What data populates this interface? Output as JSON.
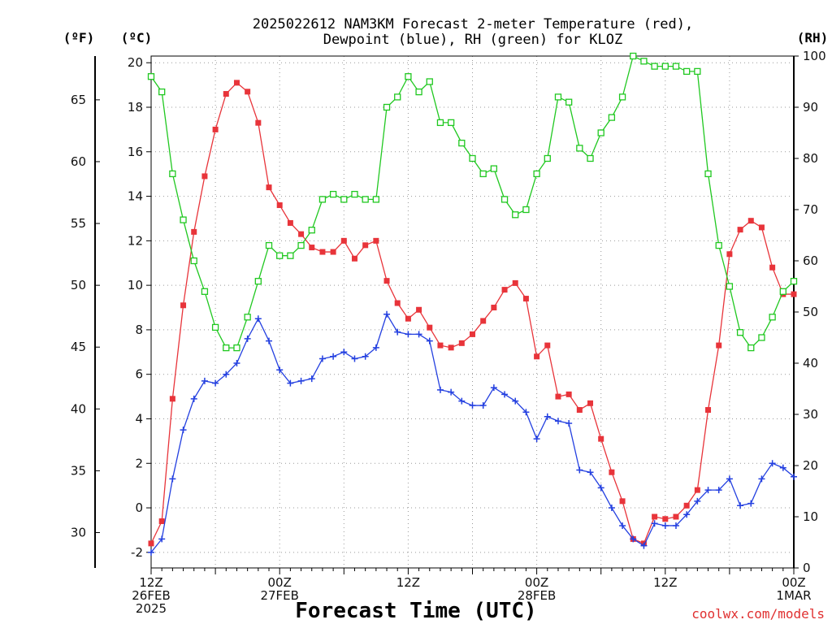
{
  "title_line1": "2025022612 NAM3KM Forecast 2-meter Temperature (red),",
  "title_line2": "Dewpoint (blue), RH (green) for KLOZ",
  "axis_labels": {
    "f": "(ºF)",
    "c": "(ºC)",
    "rh": "(RH)",
    "x": "Forecast Time (UTC)"
  },
  "credit": "coolwx.com/models",
  "colors": {
    "temperature": "#e8343a",
    "dewpoint": "#2440e0",
    "rh": "#20c820",
    "grid": "#999999",
    "axis": "#000000"
  },
  "chart_data": {
    "type": "line",
    "title": "2025022612 NAM3KM Forecast 2-meter Temperature (red), Dewpoint (blue), RH (green) for KLOZ",
    "xlabel": "Forecast Time (UTC)",
    "x_hours": [
      0,
      1,
      2,
      3,
      4,
      5,
      6,
      7,
      8,
      9,
      10,
      11,
      12,
      13,
      14,
      15,
      16,
      17,
      18,
      19,
      20,
      21,
      22,
      23,
      24,
      25,
      26,
      27,
      28,
      29,
      30,
      31,
      32,
      33,
      34,
      35,
      36,
      37,
      38,
      39,
      40,
      41,
      42,
      43,
      44,
      45,
      46,
      47,
      48,
      49,
      50,
      51,
      52,
      53,
      54,
      55,
      56,
      57,
      58,
      59,
      60
    ],
    "xlim": [
      0,
      60
    ],
    "x_ticks": [
      {
        "hour": 0,
        "lines": [
          "12Z",
          "26FEB",
          "2025"
        ]
      },
      {
        "hour": 12,
        "lines": [
          "00Z",
          "27FEB"
        ]
      },
      {
        "hour": 24,
        "lines": [
          "12Z"
        ]
      },
      {
        "hour": 36,
        "lines": [
          "00Z",
          "28FEB"
        ]
      },
      {
        "hour": 48,
        "lines": [
          "12Z"
        ]
      },
      {
        "hour": 60,
        "lines": [
          "00Z",
          "1MAR"
        ]
      }
    ],
    "y_left_celsius": {
      "label": "(ºC)",
      "ylim": [
        -2.7,
        20.3
      ],
      "ticks": [
        -2,
        0,
        2,
        4,
        6,
        8,
        10,
        12,
        14,
        16,
        18,
        20
      ]
    },
    "y_left_fahrenheit": {
      "label": "(ºF)",
      "ticks": [
        30,
        35,
        40,
        45,
        50,
        55,
        60,
        65
      ]
    },
    "y_right_rh": {
      "label": "(RH)",
      "ylim": [
        0,
        100
      ],
      "ticks": [
        0,
        10,
        20,
        30,
        40,
        50,
        60,
        70,
        80,
        90,
        100
      ]
    },
    "grid": true,
    "series": [
      {
        "name": "Temperature",
        "axis": "celsius",
        "color": "#e8343a",
        "marker": "filled-square",
        "values": [
          -1.6,
          -0.6,
          4.9,
          9.1,
          12.4,
          14.9,
          17.0,
          18.6,
          19.1,
          18.7,
          17.3,
          14.4,
          13.6,
          12.8,
          12.3,
          11.7,
          11.5,
          11.5,
          12.0,
          11.2,
          11.8,
          12.0,
          10.2,
          9.2,
          8.5,
          8.9,
          8.1,
          7.3,
          7.2,
          7.4,
          7.8,
          8.4,
          9.0,
          9.8,
          10.1,
          9.4,
          6.8,
          7.3,
          5.0,
          5.1,
          4.4,
          4.7,
          3.1,
          1.6,
          0.3,
          -1.4,
          -1.6,
          -0.4,
          -0.5,
          -0.4,
          0.1,
          0.8,
          4.4,
          7.3,
          11.4,
          12.5,
          12.9,
          12.6,
          10.8,
          9.6,
          9.6
        ]
      },
      {
        "name": "Dewpoint",
        "axis": "celsius",
        "color": "#2440e0",
        "marker": "plus",
        "values": [
          -2.0,
          -1.4,
          1.3,
          3.5,
          4.9,
          5.7,
          5.6,
          6.0,
          6.5,
          7.6,
          8.5,
          7.5,
          6.2,
          5.6,
          5.7,
          5.8,
          6.7,
          6.8,
          7.0,
          6.7,
          6.8,
          7.2,
          8.7,
          7.9,
          7.8,
          7.8,
          7.5,
          5.3,
          5.2,
          4.8,
          4.6,
          4.6,
          5.4,
          5.1,
          4.8,
          4.3,
          3.1,
          4.1,
          3.9,
          3.8,
          1.7,
          1.6,
          0.9,
          0.0,
          -0.8,
          -1.4,
          -1.7,
          -0.7,
          -0.8,
          -0.8,
          -0.3,
          0.3,
          0.8,
          0.8,
          1.3,
          0.1,
          0.2,
          1.3,
          2.0,
          1.8,
          1.4
        ]
      },
      {
        "name": "RH",
        "axis": "rh",
        "color": "#20c820",
        "marker": "open-square",
        "values": [
          96,
          93,
          77,
          68,
          60,
          54,
          47,
          43,
          43,
          49,
          56,
          63,
          61,
          61,
          63,
          66,
          72,
          73,
          72,
          73,
          72,
          72,
          90,
          92,
          96,
          93,
          95,
          87,
          87,
          83,
          80,
          77,
          78,
          72,
          69,
          70,
          77,
          80,
          92,
          91,
          82,
          80,
          85,
          88,
          92,
          100,
          99,
          98,
          98,
          98,
          97,
          97,
          77,
          63,
          55,
          46,
          43,
          45,
          49,
          54,
          56
        ]
      }
    ]
  }
}
